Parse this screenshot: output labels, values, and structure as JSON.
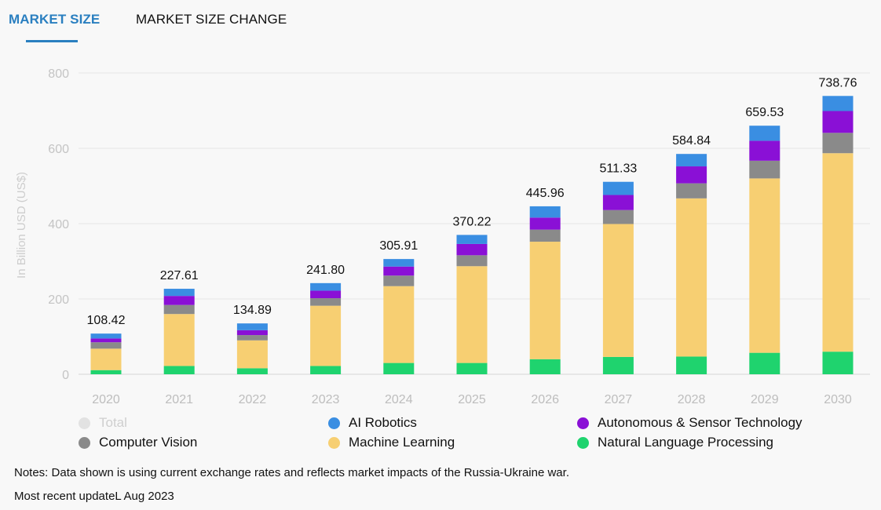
{
  "tabs": {
    "market_size": "MARKET SIZE",
    "market_size_change": "MARKET SIZE CHANGE"
  },
  "chart_data": {
    "type": "bar",
    "stacked": true,
    "categories": [
      "2020",
      "2021",
      "2022",
      "2023",
      "2024",
      "2025",
      "2026",
      "2027",
      "2028",
      "2029",
      "2030"
    ],
    "ylabel": "In Billion USD (US$)",
    "ylim": [
      0,
      800
    ],
    "yticks": [
      0,
      200,
      400,
      600,
      800
    ],
    "totals": [
      "108.42",
      "227.61",
      "134.89",
      "241.80",
      "305.91",
      "370.22",
      "445.96",
      "511.33",
      "584.84",
      "659.53",
      "738.76"
    ],
    "series": [
      {
        "name": "Natural Language Processing",
        "color": "#1fd36e",
        "values": [
          11,
          22,
          16,
          22,
          30,
          30,
          40,
          46,
          47,
          57,
          60
        ]
      },
      {
        "name": "Machine Learning",
        "color": "#f7cf72",
        "values": [
          57,
          138,
          74,
          160,
          204,
          257,
          312,
          353,
          420,
          463,
          527
        ]
      },
      {
        "name": "Computer Vision",
        "color": "#8a8a8a",
        "values": [
          17,
          24,
          14,
          20,
          28,
          29,
          32,
          37,
          40,
          47,
          54
        ]
      },
      {
        "name": "Autonomous & Sensor Technology",
        "color": "#8a10d6",
        "values": [
          10,
          24,
          13,
          20,
          24,
          30,
          32,
          40,
          45,
          53,
          58
        ]
      },
      {
        "name": "AI Robotics",
        "color": "#3a8ee2",
        "values": [
          13,
          19,
          18,
          20,
          20,
          24,
          30,
          35,
          33,
          40,
          40
        ]
      }
    ],
    "legend": [
      {
        "label": "Total",
        "color": "#e2e2e2",
        "disabled": true
      },
      {
        "label": "AI Robotics",
        "color": "#3a8ee2",
        "disabled": false
      },
      {
        "label": "Autonomous & Sensor Technology",
        "color": "#8a10d6",
        "disabled": false
      },
      {
        "label": "Computer Vision",
        "color": "#8a8a8a",
        "disabled": false
      },
      {
        "label": "Machine Learning",
        "color": "#f7cf72",
        "disabled": false
      },
      {
        "label": "Natural Language Processing",
        "color": "#1fd36e",
        "disabled": false
      }
    ],
    "grid": true
  },
  "notes": {
    "line1": "Notes: Data shown is using current exchange rates and reflects market impacts of the Russia-Ukraine war.",
    "line2": "Most recent updateL Aug 2023"
  }
}
